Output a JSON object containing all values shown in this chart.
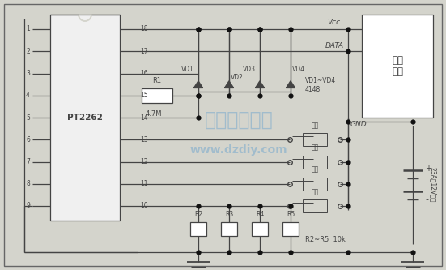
{
  "bg_color": "#d4d4cc",
  "line_color": "#444444",
  "chip_label": "PT2262",
  "pin_labels_left": [
    "1",
    "2",
    "3",
    "4",
    "5",
    "6",
    "7",
    "8",
    "9"
  ],
  "pin_labels_right": [
    "18",
    "17",
    "16",
    "15",
    "14",
    "13",
    "12",
    "11",
    "10"
  ],
  "right_box_label": "发射\n模块",
  "battery_label": "23A垉12V电池",
  "vcc_label": "Vcc",
  "data_label": "DATA",
  "gnd_label": "GND",
  "r1_label": "R1",
  "r1_val": "4.7M",
  "vd_label": "VD1~VD4\n4148",
  "vd1_label": "VD1",
  "vd2_label": "VD2",
  "vd3_label": "VD3",
  "vd4_label": "VD4",
  "r2_label": "R2",
  "r3_label": "R3",
  "r4_label": "R4",
  "r5_label": "R5",
  "r_val_label": "R2~R5  10k",
  "btn_labels": [
    "吃饭",
    "喝水",
    "吃药",
    "解手"
  ],
  "watermark1": "电子制作天地",
  "watermark2": "www.dzdiy.com",
  "watermark_color": "#5599cc",
  "watermark_alpha": 0.4
}
